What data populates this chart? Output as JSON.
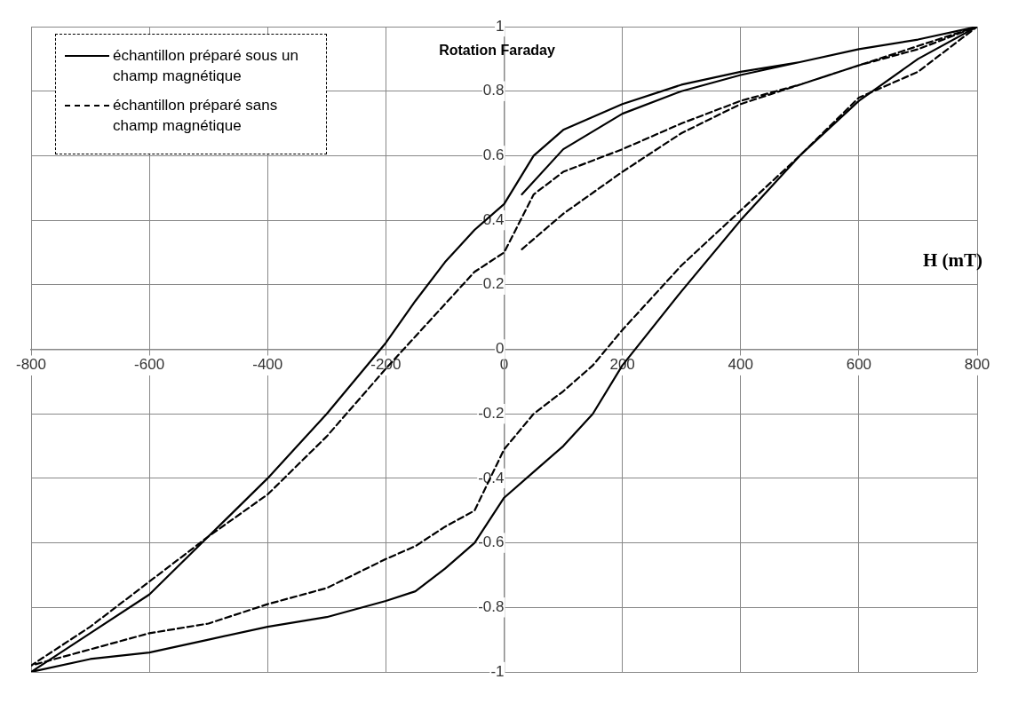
{
  "chart_data": {
    "type": "line",
    "xlabel": "H (mT)",
    "ylabel": "Rotation Faraday",
    "xlim": [
      -800,
      800
    ],
    "xticks": [
      -800,
      -600,
      -400,
      -200,
      0,
      200,
      400,
      600,
      800
    ],
    "ylim": [
      -1,
      1
    ],
    "yticks": [
      -1,
      -0.8,
      -0.6,
      -0.4,
      -0.2,
      0,
      0.2,
      0.4,
      0.6,
      0.8,
      1
    ],
    "grid": true,
    "legend": "top left",
    "marker": "none",
    "series": [
      {
        "name": "échantillon préparé sous un champ magnétique",
        "color": "#000000",
        "line_style": "solid",
        "x": [
          30,
          100,
          200,
          300,
          400,
          500,
          600,
          700,
          800,
          700,
          600,
          500,
          400,
          300,
          200,
          100,
          50,
          0,
          -50,
          -100,
          -150,
          -200,
          -300,
          -400,
          -500,
          -600,
          -700,
          -800,
          -700,
          -600,
          -500,
          -400,
          -300,
          -200,
          -150,
          -100,
          -50,
          0,
          50,
          100,
          150,
          200,
          300,
          400,
          500,
          600,
          700,
          800
        ],
        "values": [
          0.48,
          0.62,
          0.73,
          0.8,
          0.85,
          0.89,
          0.93,
          0.96,
          1,
          0.96,
          0.93,
          0.89,
          0.86,
          0.82,
          0.76,
          0.68,
          0.6,
          0.45,
          0.37,
          0.27,
          0.15,
          0.02,
          -0.2,
          -0.4,
          -0.58,
          -0.76,
          -0.88,
          -1,
          -0.96,
          -0.94,
          -0.9,
          -0.86,
          -0.83,
          -0.78,
          -0.75,
          -0.68,
          -0.6,
          -0.46,
          -0.38,
          -0.3,
          -0.2,
          -0.05,
          0.18,
          0.4,
          0.6,
          0.77,
          0.9,
          1
        ]
      },
      {
        "name": "échantillon préparé sans champ magnétique",
        "color": "#000000",
        "line_style": "dashed",
        "x": [
          30,
          100,
          200,
          300,
          400,
          500,
          600,
          700,
          800,
          700,
          600,
          500,
          400,
          300,
          200,
          100,
          50,
          0,
          -50,
          -100,
          -150,
          -200,
          -300,
          -400,
          -500,
          -600,
          -700,
          -800,
          -700,
          -600,
          -500,
          -400,
          -300,
          -200,
          -150,
          -100,
          -50,
          0,
          50,
          100,
          150,
          200,
          300,
          400,
          500,
          600,
          700,
          800
        ],
        "values": [
          0.31,
          0.42,
          0.55,
          0.67,
          0.76,
          0.82,
          0.88,
          0.94,
          1,
          0.93,
          0.88,
          0.82,
          0.77,
          0.7,
          0.62,
          0.55,
          0.48,
          0.3,
          0.24,
          0.14,
          0.04,
          -0.06,
          -0.27,
          -0.45,
          -0.58,
          -0.72,
          -0.86,
          -0.98,
          -0.93,
          -0.88,
          -0.85,
          -0.79,
          -0.74,
          -0.65,
          -0.61,
          -0.55,
          -0.5,
          -0.31,
          -0.2,
          -0.13,
          -0.05,
          0.06,
          0.26,
          0.43,
          0.6,
          0.78,
          0.86,
          1
        ]
      }
    ]
  }
}
